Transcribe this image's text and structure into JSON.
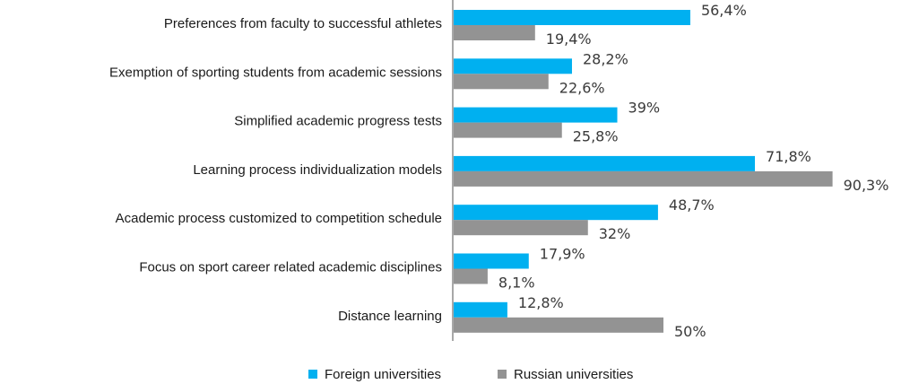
{
  "colors": {
    "foreign": "#00b0f0",
    "russian": "#939393",
    "axis": "#8c8c8c"
  },
  "chart_data": {
    "type": "bar",
    "orientation": "horizontal",
    "title": "",
    "xlabel": "",
    "ylabel": "",
    "xlim": [
      0,
      100
    ],
    "grid": false,
    "legend_position": "bottom",
    "categories": [
      "Preferences from faculty to successful athletes",
      "Exemption of sporting students from academic sessions",
      "Simplified academic progress tests",
      "Learning process individualization models",
      "Academic process customized to competition schedule",
      "Focus on sport career related academic disciplines",
      "Distance learning"
    ],
    "series": [
      {
        "name": "Foreign universities",
        "color": "#00b0f0",
        "values": [
          56.4,
          28.2,
          39,
          71.8,
          48.7,
          17.9,
          12.8
        ],
        "labels": [
          "56,4%",
          "28,2%",
          "39%",
          "71,8%",
          "48,7%",
          "17,9%",
          "12,8%"
        ]
      },
      {
        "name": "Russian universities",
        "color": "#939393",
        "values": [
          19.4,
          22.6,
          25.8,
          90.3,
          32,
          8.1,
          50
        ],
        "labels": [
          "19,4%",
          "22,6%",
          "25,8%",
          "90,3%",
          "32%",
          "8,1%",
          "50%"
        ]
      }
    ]
  },
  "legend": {
    "foreign_label": "Foreign universities",
    "russian_label": "Russian universities"
  }
}
